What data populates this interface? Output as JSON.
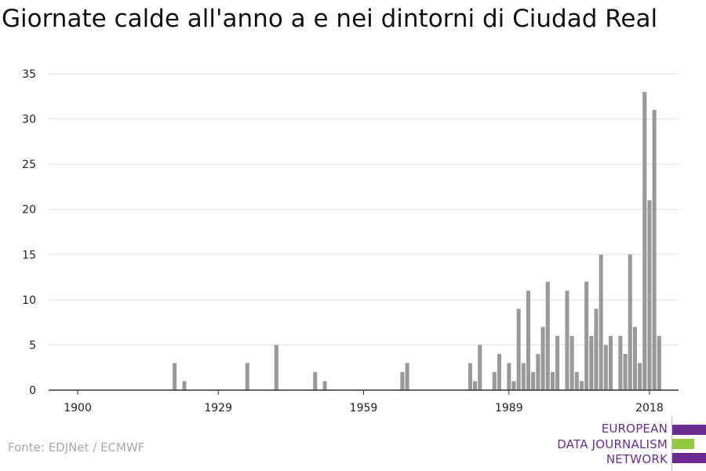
{
  "header": {
    "title": "Giornate calde all'anno a e nei dintorni di Ciudad Real"
  },
  "footer": {
    "source": "Fonte: EDJNet / ECMWF"
  },
  "logo": {
    "lines": [
      "EUROPEAN",
      "DATA JOURNALISM",
      "NETWORK"
    ],
    "colors": {
      "purple": "#6a2c91",
      "green": "#95c93d"
    }
  },
  "colors": {
    "bar": "#999999",
    "grid": "#dddddd",
    "axis": "#333333"
  },
  "chart_data": {
    "type": "bar",
    "title": "Giornate calde all'anno a e nei dintorni di Ciudad Real",
    "xlabel": "",
    "ylabel": "",
    "x_range": [
      1894,
      2024
    ],
    "ylim": [
      0,
      35
    ],
    "y_ticks": [
      0,
      5,
      10,
      15,
      20,
      25,
      30,
      35
    ],
    "x_ticks": [
      1900,
      1929,
      1959,
      1989,
      2018
    ],
    "grid": true,
    "series": [
      {
        "x": [
          1920,
          1922,
          1935,
          1941,
          1949,
          1951,
          1967,
          1968,
          1981,
          1982,
          1983,
          1986,
          1987,
          1989,
          1990,
          1991,
          1992,
          1993,
          1994,
          1995,
          1996,
          1997,
          1998,
          1999,
          2001,
          2002,
          2003,
          2004,
          2005,
          2006,
          2007,
          2008,
          2009,
          2010,
          2012,
          2013,
          2014,
          2015,
          2016,
          2017,
          2018,
          2019,
          2020
        ],
        "values": [
          3,
          1,
          3,
          5,
          2,
          1,
          2,
          3,
          3,
          1,
          5,
          2,
          4,
          3,
          1,
          9,
          3,
          11,
          2,
          4,
          7,
          12,
          2,
          6,
          11,
          6,
          2,
          1,
          12,
          6,
          9,
          15,
          5,
          6,
          6,
          4,
          15,
          7,
          3,
          33,
          21,
          31,
          6
        ]
      }
    ]
  }
}
